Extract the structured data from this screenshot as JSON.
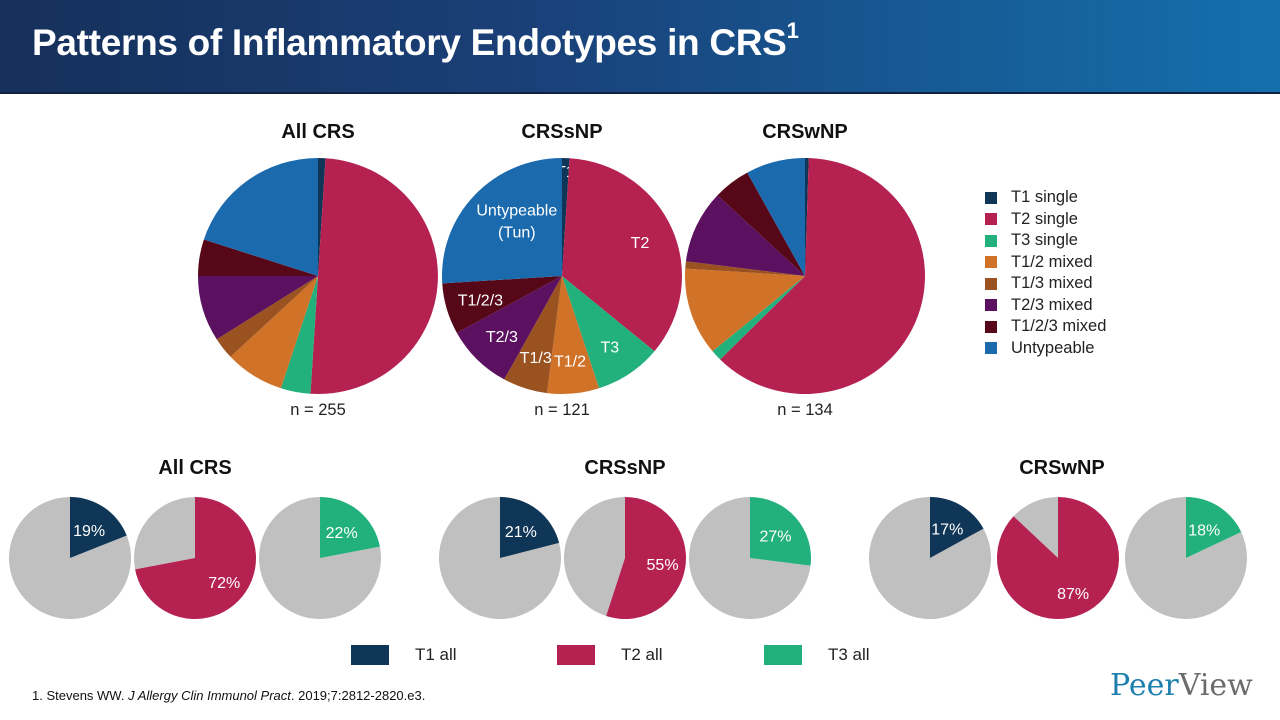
{
  "header": {
    "title": "Patterns of Inflammatory Endotypes in CRS",
    "title_sup": "1"
  },
  "colors": {
    "T1 single": "#0f3557",
    "T2 single": "#b52252",
    "T3 single": "#22b07d",
    "T1/2 mixed": "#d07228",
    "T1/3 mixed": "#9a5220",
    "T2/3 mixed": "#5b1060",
    "T1/2/3 mixed": "#560818",
    "Untypeable": "#1b6aad",
    "other": "#c0c0c0"
  },
  "legend": [
    "T1 single",
    "T2 single",
    "T3 single",
    "T1/2 mixed",
    "T1/3 mixed",
    "T2/3 mixed",
    "T1/2/3 mixed",
    "Untypeable"
  ],
  "chart_data": [
    {
      "type": "pie",
      "title": "All CRS",
      "note": "n = 255",
      "categories": [
        "T1 single",
        "T2 single",
        "T3 single",
        "T1/2 mixed",
        "T1/3 mixed",
        "T2/3 mixed",
        "T1/2/3 mixed",
        "Untypeable"
      ],
      "values": [
        1,
        50,
        4,
        8,
        3,
        9,
        5,
        20
      ],
      "slice_labels": [
        "",
        "",
        "",
        "",
        "",
        "",
        "",
        ""
      ]
    },
    {
      "type": "pie",
      "title": "CRSsNP",
      "note": "n = 121",
      "categories": [
        "T1 single",
        "T2 single",
        "T3 single",
        "T1/2 mixed",
        "T1/3 mixed",
        "T2/3 mixed",
        "T1/2/3 mixed",
        "Untypeable"
      ],
      "values": [
        1,
        35,
        9,
        7,
        6,
        9,
        7,
        26
      ],
      "slice_labels": [
        "T1",
        "T2",
        "T3",
        "T1/2",
        "T1/3",
        "T2/3",
        "T1/2/3",
        "Untypeable (Tun)"
      ]
    },
    {
      "type": "pie",
      "title": "CRSwNP",
      "note": "n = 134",
      "categories": [
        "T1 single",
        "T2 single",
        "T3 single",
        "T1/2 mixed",
        "T1/3 mixed",
        "T2/3 mixed",
        "T1/2/3 mixed",
        "Untypeable"
      ],
      "values": [
        0.5,
        62,
        1.5,
        12,
        1,
        10,
        5,
        8
      ],
      "slice_labels": [
        "",
        "",
        "",
        "",
        "",
        "",
        "",
        ""
      ]
    }
  ],
  "bottom": {
    "groups": [
      {
        "title": "All CRS",
        "pies": [
          {
            "series": "T1 all",
            "value": 19,
            "label": "19%"
          },
          {
            "series": "T2 all",
            "value": 72,
            "label": "72%"
          },
          {
            "series": "T3 all",
            "value": 22,
            "label": "22%"
          }
        ]
      },
      {
        "title": "CRSsNP",
        "pies": [
          {
            "series": "T1 all",
            "value": 21,
            "label": "21%"
          },
          {
            "series": "T2 all",
            "value": 55,
            "label": "55%"
          },
          {
            "series": "T3 all",
            "value": 27,
            "label": "27%"
          }
        ]
      },
      {
        "title": "CRSwNP",
        "pies": [
          {
            "series": "T1 all",
            "value": 17,
            "label": "17%"
          },
          {
            "series": "T2 all",
            "value": 87,
            "label": "87%"
          },
          {
            "series": "T3 all",
            "value": 18,
            "label": "18%"
          }
        ]
      }
    ],
    "legend": [
      {
        "name": "T1 all",
        "color": "#0f3557"
      },
      {
        "name": "T2 all",
        "color": "#b52252"
      },
      {
        "name": "T3 all",
        "color": "#22b07d"
      }
    ]
  },
  "footnote": {
    "prefix": "1. Stevens WW. ",
    "journal": "J Allergy Clin Immunol Pract",
    "suffix": ". 2019;7:2812-2820.e3."
  },
  "logo": {
    "part1": "Peer",
    "part2": "View"
  }
}
